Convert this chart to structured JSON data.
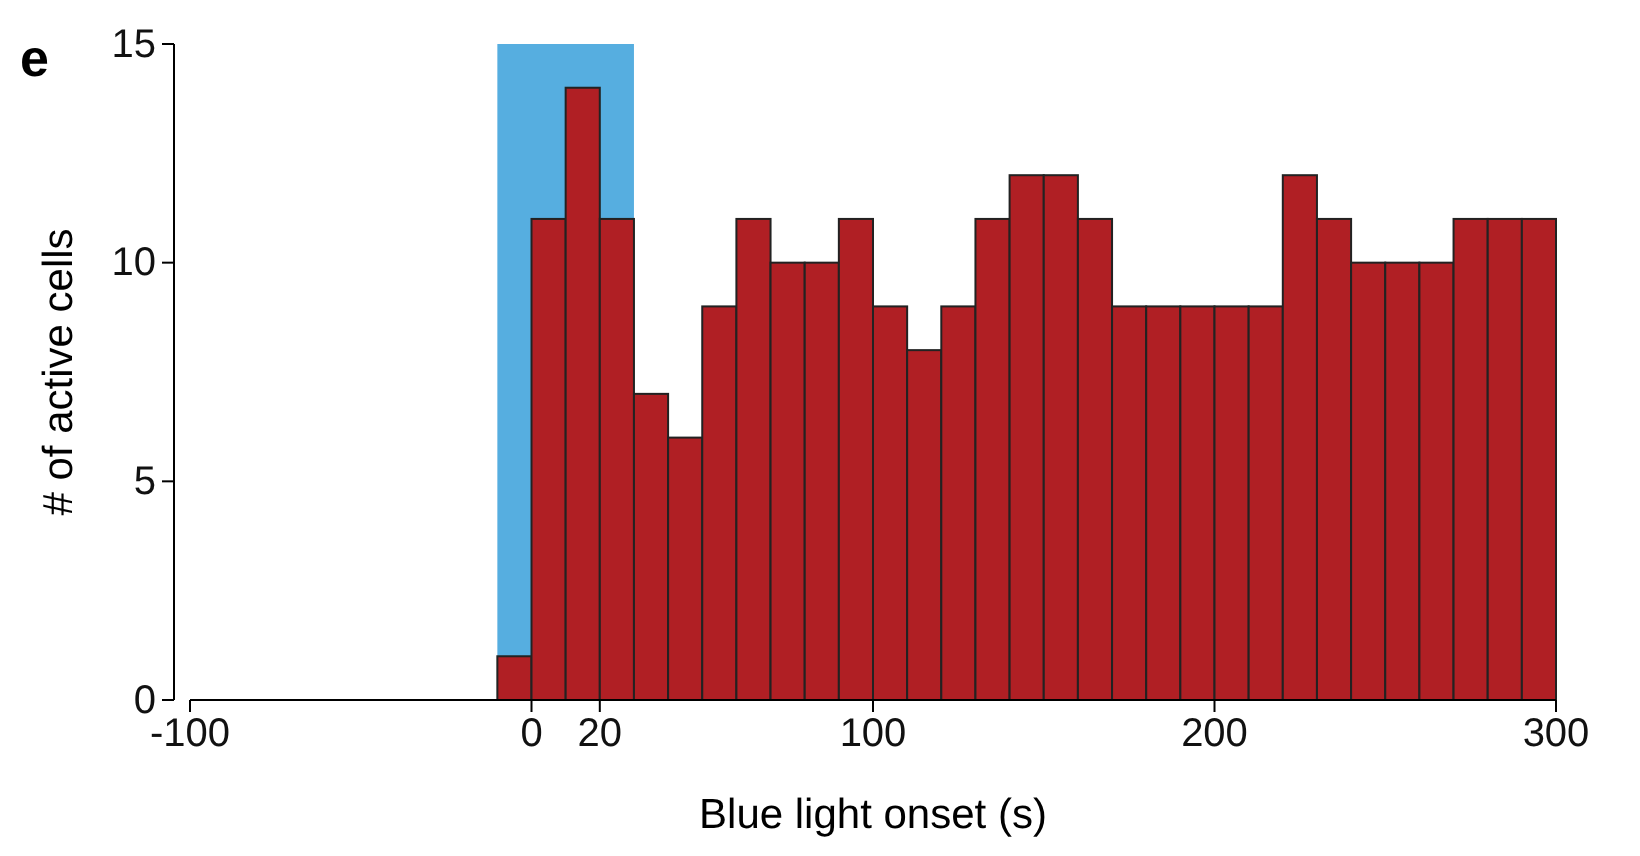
{
  "chart_data": {
    "type": "histogram",
    "xlabel": "Blue light onset (s)",
    "ylabel": "# of active cells",
    "annotations": [
      "e"
    ],
    "bins": [
      -10,
      0,
      10,
      20,
      30,
      40,
      50,
      60,
      70,
      80,
      90,
      100,
      110,
      120,
      130,
      140,
      150,
      160,
      170,
      180,
      190,
      200,
      210,
      220,
      230,
      240,
      250,
      260,
      270,
      280,
      290,
      300
    ],
    "values": [
      1,
      11,
      14,
      11,
      7,
      6,
      9,
      11,
      10,
      10,
      11,
      9,
      8,
      9,
      11,
      12,
      12,
      11,
      9,
      9,
      9,
      9,
      9,
      12,
      11,
      10,
      10,
      10,
      11,
      11,
      11
    ],
    "color": "#b01f24",
    "xlim": [
      -100,
      300
    ],
    "xticks": [
      -100,
      0,
      20,
      100,
      200,
      300
    ],
    "ylim": [
      0,
      15
    ],
    "yticks": [
      0,
      5,
      10,
      15
    ],
    "bands": [
      {
        "axis": "x",
        "from": -10,
        "to": 30,
        "color": "#56aee0"
      }
    ]
  }
}
